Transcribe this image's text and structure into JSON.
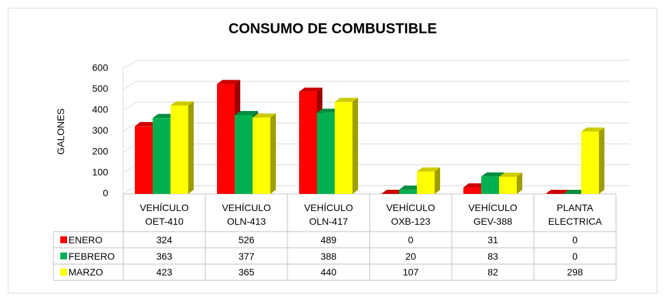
{
  "chart_data": {
    "type": "bar3d",
    "title": "CONSUMO DE COMBUSTIBLE",
    "y_label": "GALONES",
    "categories": [
      "VEHÍCULO OET-410",
      "VEHÍCULO OLN-413",
      "VEHÍCULO OLN-417",
      "VEHÍCULO OXB-123",
      "VEHÍCULO GEV-388",
      "PLANTA ELECTRICA"
    ],
    "series": [
      {
        "name": "ENERO",
        "color": "#ff0000",
        "values": [
          324,
          526,
          489,
          0,
          31,
          0
        ]
      },
      {
        "name": "FEBRERO",
        "color": "#00b050",
        "values": [
          363,
          377,
          388,
          20,
          83,
          0
        ]
      },
      {
        "name": "MARZO",
        "color": "#ffff00",
        "values": [
          423,
          365,
          440,
          107,
          82,
          298
        ]
      }
    ],
    "ylim": [
      0,
      600
    ],
    "yticks": [
      0,
      100,
      200,
      300,
      400,
      500,
      600
    ],
    "grid": true,
    "data_table": true
  }
}
